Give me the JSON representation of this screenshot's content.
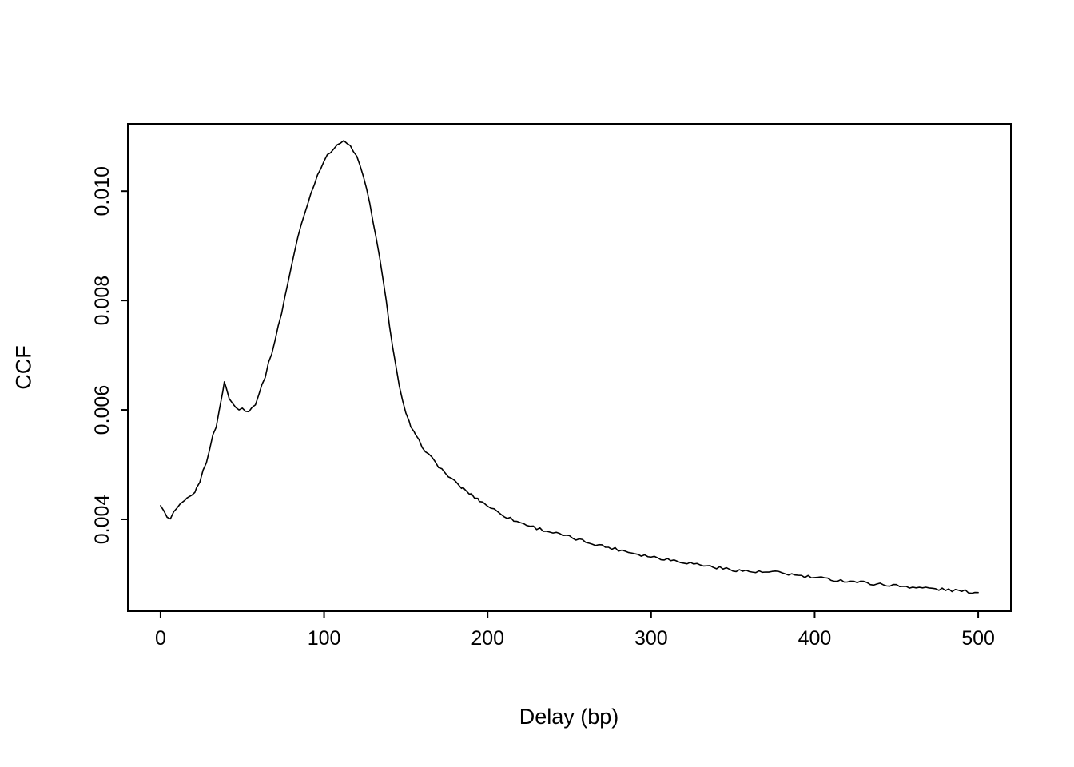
{
  "chart_data": {
    "type": "line",
    "title": "",
    "xlabel": "Delay (bp)",
    "ylabel": "CCF",
    "x_ticks": [
      0,
      100,
      200,
      300,
      400,
      500
    ],
    "x_tick_labels": [
      "0",
      "100",
      "200",
      "300",
      "400",
      "500"
    ],
    "y_ticks": [
      0.004,
      0.006,
      0.008,
      0.01
    ],
    "y_tick_labels": [
      "0.004",
      "0.006",
      "0.008",
      "0.010"
    ],
    "xlim": [
      -20,
      520
    ],
    "ylim": [
      0.00232,
      0.01123
    ],
    "grid": false,
    "legend": null,
    "background": "#ffffff",
    "line_color": "#000000",
    "axis_color": "#000000",
    "noise_amplitude": 3e-05,
    "sample_step": 2,
    "series": [
      {
        "name": "CCF",
        "points": [
          [
            0,
            0.00425
          ],
          [
            2,
            0.00418
          ],
          [
            4,
            0.00402
          ],
          [
            6,
            0.004
          ],
          [
            8,
            0.00412
          ],
          [
            10,
            0.0042
          ],
          [
            13,
            0.00428
          ],
          [
            16,
            0.00436
          ],
          [
            19,
            0.00443
          ],
          [
            22,
            0.00455
          ],
          [
            24,
            0.0047
          ],
          [
            26,
            0.00488
          ],
          [
            28,
            0.00505
          ],
          [
            30,
            0.0053
          ],
          [
            32,
            0.00552
          ],
          [
            34,
            0.0057
          ],
          [
            36,
            0.006
          ],
          [
            38,
            0.00635
          ],
          [
            39,
            0.00652
          ],
          [
            40,
            0.0064
          ],
          [
            42,
            0.00622
          ],
          [
            44,
            0.00612
          ],
          [
            46,
            0.00604
          ],
          [
            48,
            0.006
          ],
          [
            50,
            0.00606
          ],
          [
            52,
            0.006
          ],
          [
            54,
            0.00598
          ],
          [
            56,
            0.00604
          ],
          [
            58,
            0.00612
          ],
          [
            60,
            0.00628
          ],
          [
            62,
            0.00645
          ],
          [
            64,
            0.00662
          ],
          [
            66,
            0.00684
          ],
          [
            68,
            0.00705
          ],
          [
            70,
            0.00728
          ],
          [
            72,
            0.00752
          ],
          [
            74,
            0.00778
          ],
          [
            76,
            0.00806
          ],
          [
            78,
            0.00835
          ],
          [
            80,
            0.00862
          ],
          [
            82,
            0.0089
          ],
          [
            84,
            0.00915
          ],
          [
            86,
            0.00938
          ],
          [
            88,
            0.00958
          ],
          [
            90,
            0.00978
          ],
          [
            92,
            0.00996
          ],
          [
            94,
            0.01014
          ],
          [
            96,
            0.0103
          ],
          [
            98,
            0.01044
          ],
          [
            100,
            0.01056
          ],
          [
            102,
            0.01064
          ],
          [
            104,
            0.01072
          ],
          [
            106,
            0.0108
          ],
          [
            108,
            0.01085
          ],
          [
            110,
            0.01088
          ],
          [
            112,
            0.0109
          ],
          [
            114,
            0.01087
          ],
          [
            116,
            0.01082
          ],
          [
            118,
            0.01074
          ],
          [
            120,
            0.01062
          ],
          [
            122,
            0.01046
          ],
          [
            124,
            0.01026
          ],
          [
            126,
            0.01002
          ],
          [
            128,
            0.00976
          ],
          [
            130,
            0.00945
          ],
          [
            132,
            0.00912
          ],
          [
            134,
            0.00876
          ],
          [
            136,
            0.00838
          ],
          [
            138,
            0.00798
          ],
          [
            140,
            0.00756
          ],
          [
            142,
            0.00716
          ],
          [
            144,
            0.00678
          ],
          [
            146,
            0.00645
          ],
          [
            148,
            0.00616
          ],
          [
            150,
            0.00592
          ],
          [
            153,
            0.0057
          ],
          [
            156,
            0.00552
          ],
          [
            160,
            0.00534
          ],
          [
            164,
            0.00518
          ],
          [
            168,
            0.00504
          ],
          [
            172,
            0.00491
          ],
          [
            176,
            0.00479
          ],
          [
            180,
            0.00468
          ],
          [
            185,
            0.00456
          ],
          [
            190,
            0.00445
          ],
          [
            195,
            0.00435
          ],
          [
            200,
            0.00425
          ],
          [
            206,
            0.00414
          ],
          [
            212,
            0.00404
          ],
          [
            218,
            0.00396
          ],
          [
            224,
            0.0039
          ],
          [
            230,
            0.00384
          ],
          [
            236,
            0.00379
          ],
          [
            242,
            0.00374
          ],
          [
            248,
            0.00369
          ],
          [
            254,
            0.00364
          ],
          [
            260,
            0.00359
          ],
          [
            266,
            0.00355
          ],
          [
            272,
            0.0035
          ],
          [
            278,
            0.00346
          ],
          [
            284,
            0.00342
          ],
          [
            290,
            0.00338
          ],
          [
            296,
            0.00334
          ],
          [
            302,
            0.00331
          ],
          [
            308,
            0.00328
          ],
          [
            314,
            0.00325
          ],
          [
            320,
            0.00322
          ],
          [
            326,
            0.00319
          ],
          [
            332,
            0.00316
          ],
          [
            338,
            0.00313
          ],
          [
            344,
            0.0031
          ],
          [
            350,
            0.00308
          ],
          [
            356,
            0.00306
          ],
          [
            362,
            0.00304
          ],
          [
            368,
            0.00303
          ],
          [
            374,
            0.00303
          ],
          [
            380,
            0.00302
          ],
          [
            386,
            0.00299
          ],
          [
            392,
            0.00296
          ],
          [
            398,
            0.00294
          ],
          [
            404,
            0.00292
          ],
          [
            410,
            0.0029
          ],
          [
            416,
            0.00288
          ],
          [
            422,
            0.00287
          ],
          [
            428,
            0.00285
          ],
          [
            434,
            0.00283
          ],
          [
            440,
            0.00281
          ],
          [
            446,
            0.0028
          ],
          [
            452,
            0.00278
          ],
          [
            458,
            0.00277
          ],
          [
            464,
            0.00275
          ],
          [
            470,
            0.00274
          ],
          [
            476,
            0.00272
          ],
          [
            482,
            0.00271
          ],
          [
            488,
            0.00269
          ],
          [
            494,
            0.00268
          ],
          [
            500,
            0.00266
          ]
        ]
      }
    ]
  }
}
